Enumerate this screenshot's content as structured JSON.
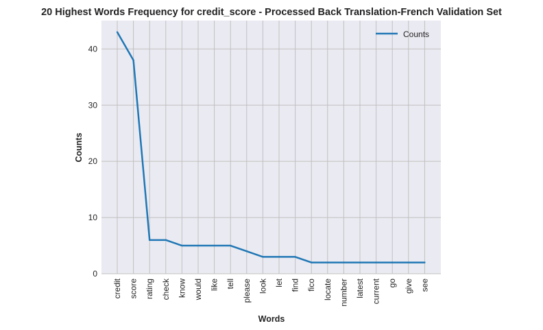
{
  "chart_data": {
    "type": "line",
    "title": "20 Highest Words Frequency for credit_score - Processed Back Translation-French Validation Set",
    "xlabel": "Words",
    "ylabel": "Counts",
    "categories": [
      "credit",
      "score",
      "rating",
      "check",
      "know",
      "would",
      "like",
      "tell",
      "please",
      "look",
      "let",
      "find",
      "fico",
      "locate",
      "number",
      "latest",
      "current",
      "go",
      "give",
      "see"
    ],
    "series": [
      {
        "name": "Counts",
        "values": [
          43,
          38,
          6,
          6,
          5,
          5,
          5,
          5,
          4,
          3,
          3,
          3,
          2,
          2,
          2,
          2,
          2,
          2,
          2,
          2
        ],
        "color": "#1f77b4"
      }
    ],
    "yticks": [
      0,
      10,
      20,
      30,
      40
    ],
    "ylim": [
      0,
      45.05
    ],
    "grid": true,
    "legend_position": "top-right",
    "background": "#eaeaf2",
    "grid_color": "#c0c0c0"
  }
}
